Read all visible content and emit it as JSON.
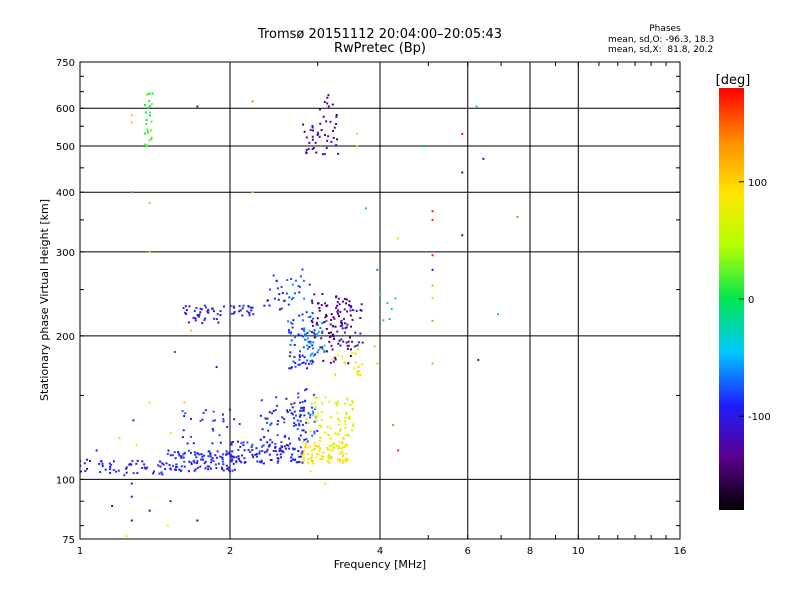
{
  "chart_data": {
    "type": "scatter",
    "title": "Tromsø 20151112 20:04:00–20:05:43",
    "subtitle": "RwPretec (Bp)",
    "xlabel": "Frequency [MHz]",
    "ylabel": "Stationary phase Virtual Height [km]",
    "x_scale": "log",
    "y_scale": "log",
    "xlim": [
      1,
      16
    ],
    "ylim": [
      75,
      750
    ],
    "x_ticks": [
      1,
      2,
      4,
      6,
      8,
      10,
      16
    ],
    "x_tick_labels": [
      "1",
      "2",
      "4",
      "6",
      "8",
      "10",
      "16"
    ],
    "y_ticks": [
      75,
      100,
      200,
      300,
      400,
      500,
      600,
      750
    ],
    "y_tick_labels": [
      "75",
      "100",
      "200",
      "300",
      "400",
      "500",
      "600",
      "750"
    ],
    "grid": true,
    "colorbar": {
      "label": "[deg]",
      "range": [
        -180,
        180
      ],
      "ticks": [
        -100,
        0,
        100
      ],
      "tick_labels": [
        "-100",
        "0",
        "100"
      ],
      "colors": [
        "#000000",
        "#5a008c",
        "#1e1eff",
        "#00c8ff",
        "#00e650",
        "#b4ff00",
        "#ffe600",
        "#ff8c00",
        "#ff0000"
      ]
    },
    "legend": {
      "title": "Phases",
      "line1": "mean, sd,O: -96.3, 18.3",
      "line2": "mean, sd,X:  81.8, 20.2"
    },
    "series": [
      {
        "phase_mean": -96.3,
        "phase_sd": 18.3
      },
      {
        "phase_mean": 81.8,
        "phase_sd": 20.2
      }
    ],
    "clusters": [
      {
        "f": [
          1.0,
          1.52
        ],
        "h": [
          102,
          110
        ],
        "phase": -100,
        "n": 55
      },
      {
        "f": [
          1.5,
          2.05
        ],
        "h": [
          104,
          115
        ],
        "phase": -95,
        "n": 110
      },
      {
        "f": [
          2.0,
          2.8
        ],
        "h": [
          108,
          120
        ],
        "phase": -95,
        "n": 110
      },
      {
        "f": [
          2.3,
          2.85
        ],
        "h": [
          120,
          150
        ],
        "phase": -90,
        "n": 65
      },
      {
        "f": [
          1.6,
          2.1
        ],
        "h": [
          118,
          140
        ],
        "phase": -90,
        "n": 28
      },
      {
        "f": [
          2.7,
          3.0
        ],
        "h": [
          120,
          155
        ],
        "phase": -80,
        "n": 30
      },
      {
        "f": [
          2.8,
          3.45
        ],
        "h": [
          108,
          120
        ],
        "phase": 85,
        "n": 95
      },
      {
        "f": [
          2.85,
          3.55
        ],
        "h": [
          120,
          150
        ],
        "phase": 70,
        "n": 70
      },
      {
        "f": [
          3.2,
          3.7
        ],
        "h": [
          165,
          190
        ],
        "phase": 85,
        "n": 22
      },
      {
        "f": [
          1.6,
          1.95
        ],
        "h": [
          212,
          232
        ],
        "phase": -95,
        "n": 38
      },
      {
        "f": [
          2.0,
          2.25
        ],
        "h": [
          220,
          232
        ],
        "phase": -95,
        "n": 22
      },
      {
        "f": [
          2.3,
          2.6
        ],
        "h": [
          225,
          270
        ],
        "phase": -95,
        "n": 18
      },
      {
        "f": [
          2.6,
          2.95
        ],
        "h": [
          170,
          225
        ],
        "phase": -85,
        "n": 60
      },
      {
        "f": [
          2.6,
          2.9
        ],
        "h": [
          230,
          290
        ],
        "phase": -80,
        "n": 18
      },
      {
        "f": [
          2.9,
          3.5
        ],
        "h": [
          175,
          245
        ],
        "phase": -135,
        "n": 100
      },
      {
        "f": [
          2.8,
          3.15
        ],
        "h": [
          180,
          215
        ],
        "phase": -60,
        "n": 30
      },
      {
        "f": [
          3.3,
          3.7
        ],
        "h": [
          190,
          235
        ],
        "phase": -115,
        "n": 30
      },
      {
        "f": [
          2.8,
          3.3
        ],
        "h": [
          480,
          560
        ],
        "phase": -125,
        "n": 38
      },
      {
        "f": [
          3.0,
          3.35
        ],
        "h": [
          560,
          640
        ],
        "phase": -130,
        "n": 12
      },
      {
        "f": [
          1.35,
          1.4
        ],
        "h": [
          495,
          650
        ],
        "phase": 10,
        "n": 26
      },
      {
        "f": [
          4.0,
          4.3
        ],
        "h": [
          215,
          250
        ],
        "phase": -20,
        "n": 6
      }
    ],
    "points": [
      {
        "x": 1.27,
        "y": 560,
        "phase": 110
      },
      {
        "x": 1.27,
        "y": 580,
        "phase": 110
      },
      {
        "x": 1.27,
        "y": 400,
        "phase": 150
      },
      {
        "x": 1.38,
        "y": 300,
        "phase": 30
      },
      {
        "x": 1.38,
        "y": 380,
        "phase": 30
      },
      {
        "x": 1.72,
        "y": 605,
        "phase": -120
      },
      {
        "x": 2.22,
        "y": 620,
        "phase": 140
      },
      {
        "x": 2.22,
        "y": 400,
        "phase": 100
      },
      {
        "x": 3.6,
        "y": 500,
        "phase": 100
      },
      {
        "x": 3.6,
        "y": 530,
        "phase": 100
      },
      {
        "x": 3.75,
        "y": 370,
        "phase": -10
      },
      {
        "x": 3.95,
        "y": 275,
        "phase": -60
      },
      {
        "x": 4.35,
        "y": 320,
        "phase": 60
      },
      {
        "x": 4.9,
        "y": 500,
        "phase": -20
      },
      {
        "x": 5.1,
        "y": 365,
        "phase": 170
      },
      {
        "x": 5.1,
        "y": 350,
        "phase": 170
      },
      {
        "x": 5.1,
        "y": 295,
        "phase": 170
      },
      {
        "x": 5.1,
        "y": 275,
        "phase": -110
      },
      {
        "x": 5.1,
        "y": 255,
        "phase": 120
      },
      {
        "x": 5.1,
        "y": 240,
        "phase": 100
      },
      {
        "x": 5.1,
        "y": 215,
        "phase": 130
      },
      {
        "x": 5.1,
        "y": 175,
        "phase": 120
      },
      {
        "x": 5.85,
        "y": 530,
        "phase": 170
      },
      {
        "x": 5.85,
        "y": 440,
        "phase": -130
      },
      {
        "x": 5.85,
        "y": 325,
        "phase": -130
      },
      {
        "x": 6.25,
        "y": 605,
        "phase": -20
      },
      {
        "x": 6.45,
        "y": 470,
        "phase": -110
      },
      {
        "x": 6.3,
        "y": 178,
        "phase": -130
      },
      {
        "x": 6.9,
        "y": 222,
        "phase": -30
      },
      {
        "x": 7.55,
        "y": 355,
        "phase": 140
      },
      {
        "x": 4.25,
        "y": 130,
        "phase": 140
      },
      {
        "x": 4.35,
        "y": 115,
        "phase": 170
      },
      {
        "x": 3.95,
        "y": 175,
        "phase": 100
      },
      {
        "x": 3.9,
        "y": 190,
        "phase": 110
      },
      {
        "x": 1.16,
        "y": 88,
        "phase": -140
      },
      {
        "x": 1.27,
        "y": 98,
        "phase": -110
      },
      {
        "x": 1.27,
        "y": 92,
        "phase": -110
      },
      {
        "x": 1.27,
        "y": 82,
        "phase": -140
      },
      {
        "x": 1.24,
        "y": 76,
        "phase": 80
      },
      {
        "x": 1.38,
        "y": 86,
        "phase": -130
      },
      {
        "x": 1.52,
        "y": 90,
        "phase": -120
      },
      {
        "x": 1.5,
        "y": 80,
        "phase": 90
      },
      {
        "x": 1.72,
        "y": 82,
        "phase": -130
      },
      {
        "x": 1.28,
        "y": 133,
        "phase": -100
      },
      {
        "x": 1.38,
        "y": 145,
        "phase": 60
      },
      {
        "x": 1.55,
        "y": 185,
        "phase": -80
      },
      {
        "x": 1.67,
        "y": 205,
        "phase": 110
      },
      {
        "x": 1.88,
        "y": 172,
        "phase": -110
      },
      {
        "x": 1.62,
        "y": 145,
        "phase": 110
      },
      {
        "x": 1.52,
        "y": 125,
        "phase": 100
      },
      {
        "x": 1.08,
        "y": 115,
        "phase": -100
      },
      {
        "x": 1.2,
        "y": 122,
        "phase": 40
      },
      {
        "x": 1.3,
        "y": 118,
        "phase": 90
      },
      {
        "x": 2.0,
        "y": 140,
        "phase": -110
      },
      {
        "x": 2.9,
        "y": 104,
        "phase": 70
      },
      {
        "x": 3.1,
        "y": 98,
        "phase": 60
      }
    ]
  }
}
